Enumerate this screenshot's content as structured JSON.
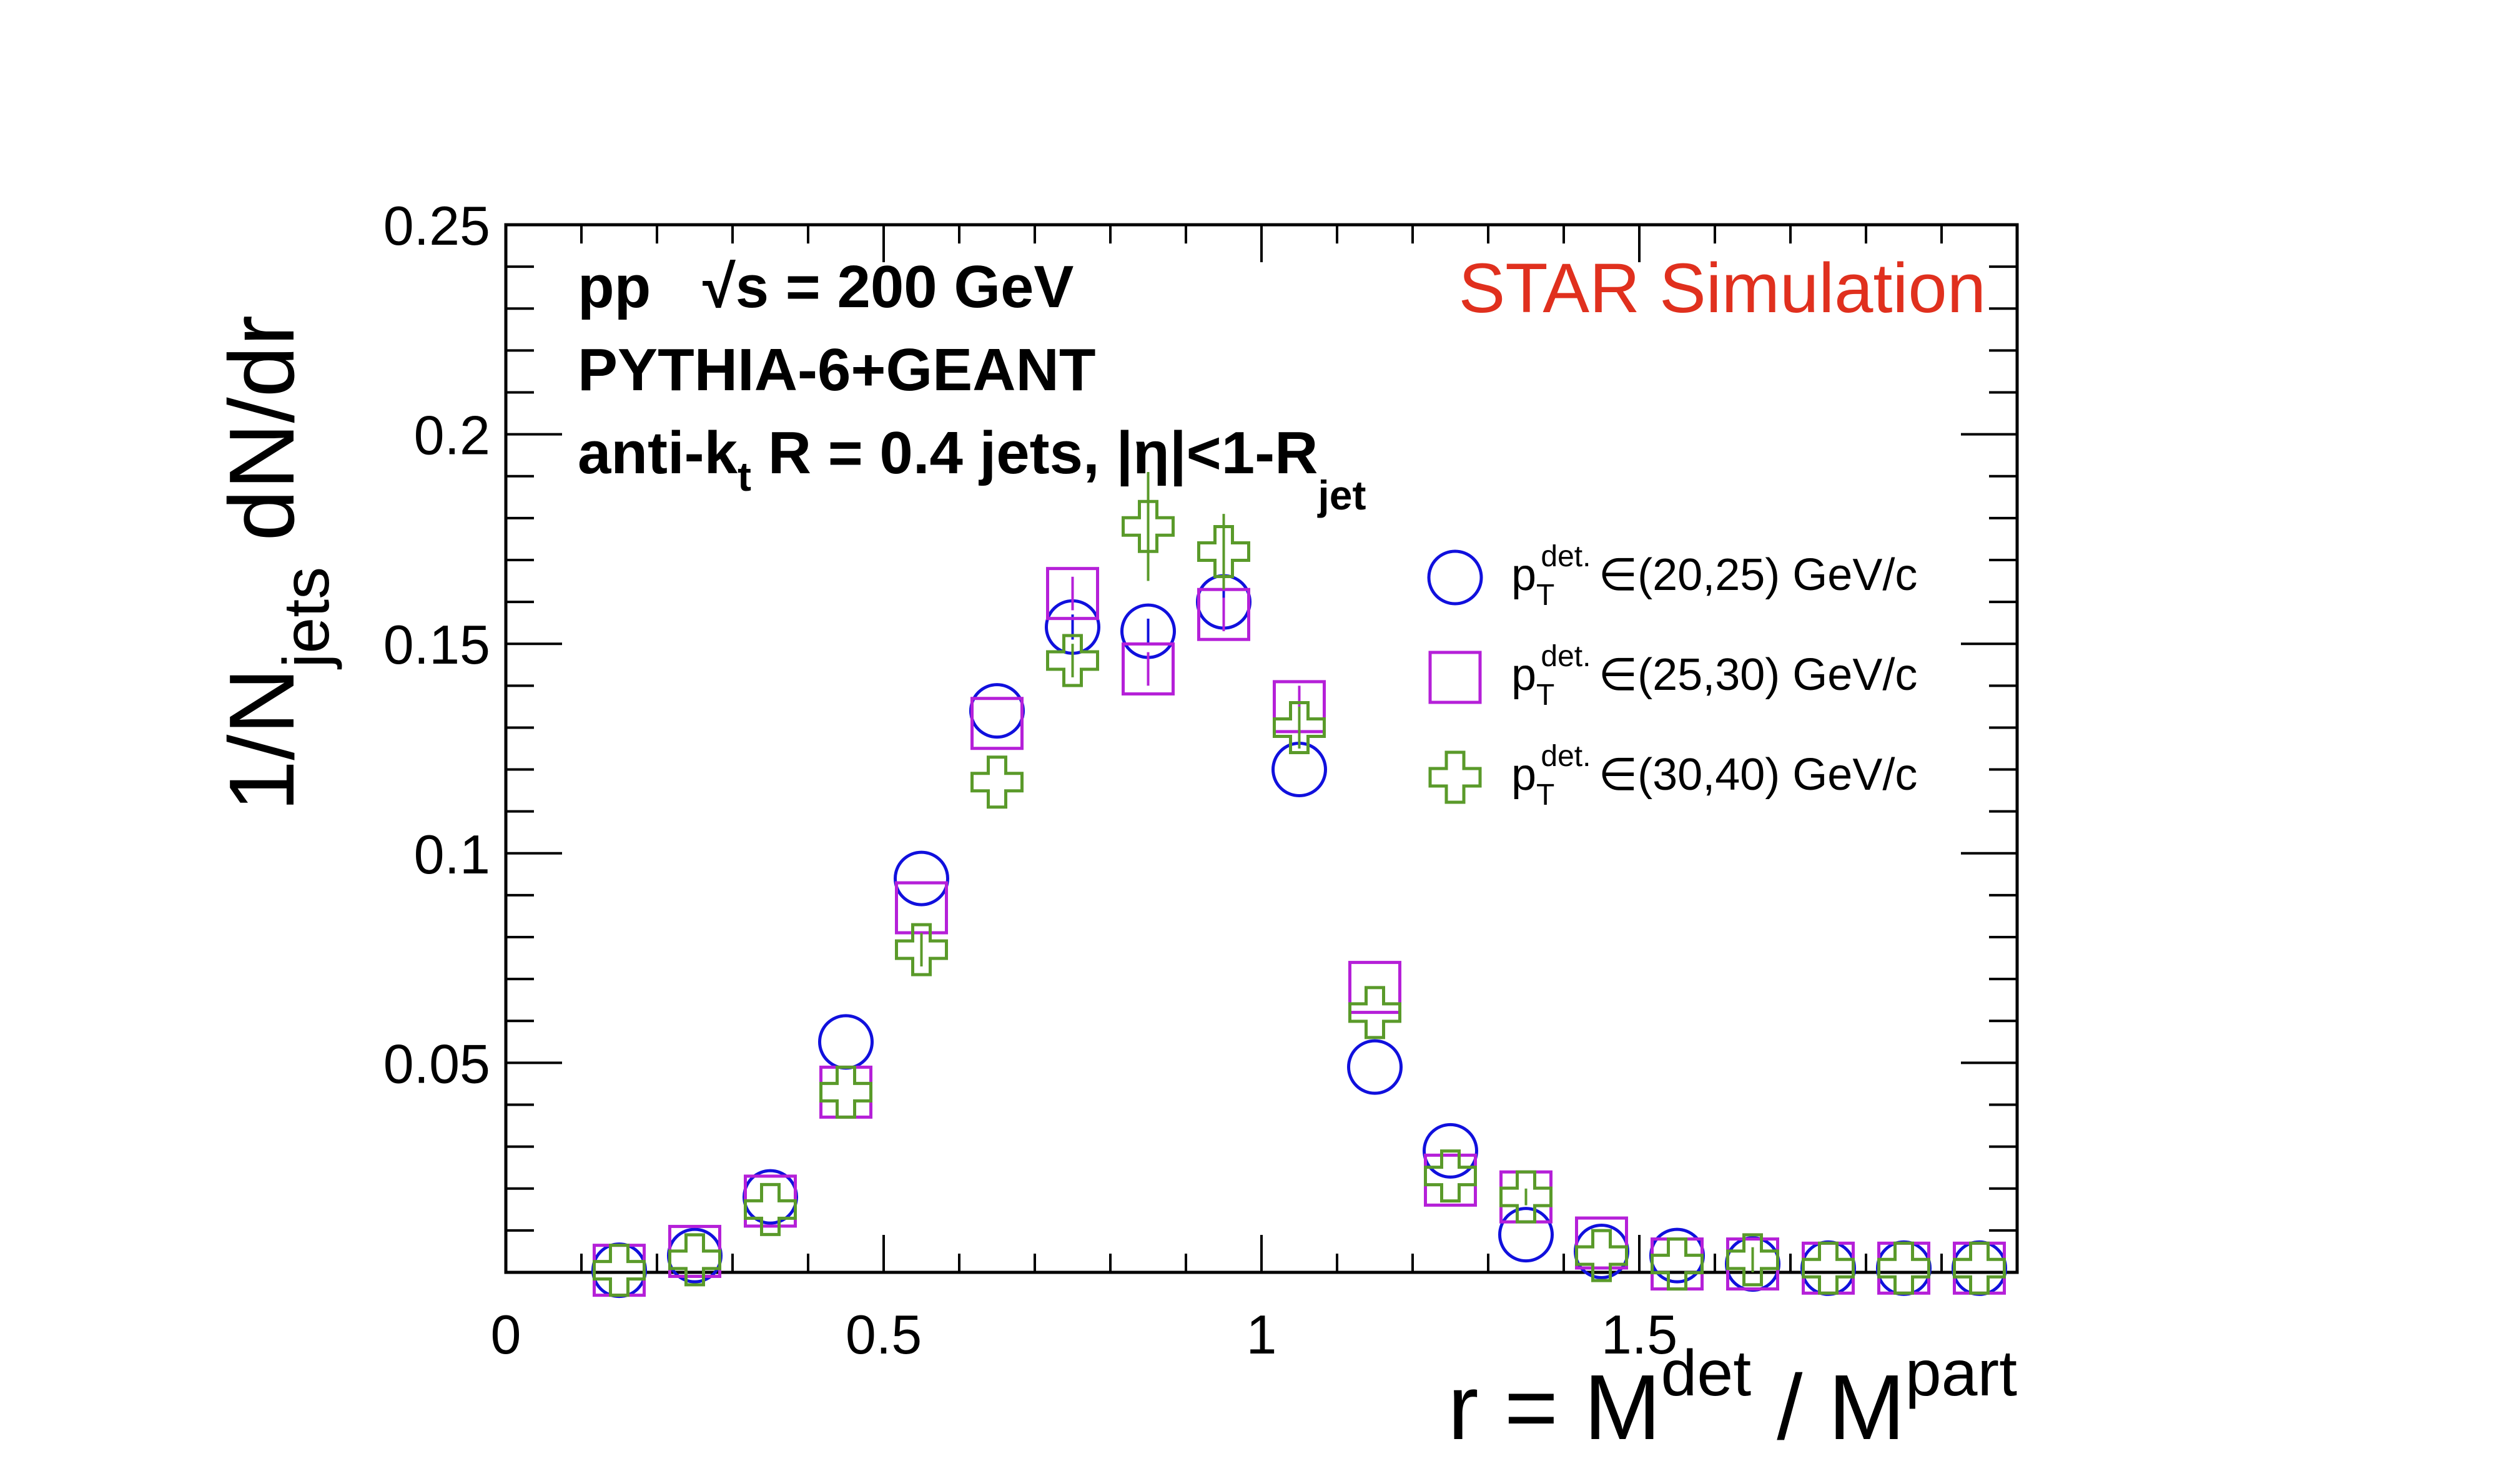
{
  "chart_data": {
    "type": "scatter",
    "xlabel": "r = M",
    "xlabel_sup1": "det",
    "xlabel_mid": " / M",
    "xlabel_sup2": "part",
    "ylabel": "1/N",
    "ylabel_sub": "jets",
    "ylabel_tail": " dN/dr",
    "xlim": [
      0,
      2.0
    ],
    "ylim": [
      0,
      0.25
    ],
    "x_ticks": [
      {
        "value": 0,
        "label": "0"
      },
      {
        "value": 0.5,
        "label": "0.5"
      },
      {
        "value": 1,
        "label": "1"
      },
      {
        "value": 1.5,
        "label": "1.5"
      }
    ],
    "y_ticks": [
      {
        "value": 0.05,
        "label": "0.05"
      },
      {
        "value": 0.1,
        "label": "0.1"
      },
      {
        "value": 0.15,
        "label": "0.15"
      },
      {
        "value": 0.2,
        "label": "0.2"
      },
      {
        "value": 0.25,
        "label": "0.25"
      }
    ],
    "grid": false,
    "legend_position": "right",
    "series": [
      {
        "label_main": "p",
        "label_sub": "T",
        "label_sup": "det.",
        "label_range": "∈(20,25) GeV/c",
        "marker": "circle",
        "color": "#1010dd",
        "x": [
          0.15,
          0.25,
          0.35,
          0.45,
          0.55,
          0.65,
          0.75,
          0.85,
          0.95,
          1.05,
          1.15,
          1.25,
          1.35,
          1.45,
          1.55,
          1.65,
          1.75,
          1.85,
          1.95
        ],
        "y": [
          0.0005,
          0.004,
          0.018,
          0.055,
          0.094,
          0.134,
          0.154,
          0.153,
          0.16,
          0.12,
          0.049,
          0.029,
          0.009,
          0.005,
          0.004,
          0.002,
          0.001,
          0.001,
          0.001
        ],
        "yerr": [
          0,
          0,
          0,
          0,
          0,
          0,
          0.003,
          0.003,
          0.003,
          0,
          0,
          0,
          0,
          0,
          0,
          0,
          0,
          0,
          0
        ]
      },
      {
        "label_main": "p",
        "label_sub": "T",
        "label_sup": "det.",
        "label_range": "∈(25,30) GeV/c",
        "marker": "square",
        "color": "#b520d8",
        "x": [
          0.15,
          0.25,
          0.35,
          0.45,
          0.55,
          0.65,
          0.75,
          0.85,
          0.95,
          1.05,
          1.15,
          1.25,
          1.35,
          1.45,
          1.55,
          1.65,
          1.75,
          1.85,
          1.95
        ],
        "y": [
          0.0005,
          0.005,
          0.017,
          0.043,
          0.087,
          0.131,
          0.162,
          0.144,
          0.157,
          0.135,
          0.068,
          0.022,
          0.018,
          0.007,
          0.002,
          0.002,
          0.001,
          0.001,
          0.001
        ],
        "yerr": [
          0,
          0,
          0,
          0,
          0,
          0,
          0.004,
          0.004,
          0.004,
          0.005,
          0,
          0,
          0,
          0,
          0,
          0,
          0,
          0,
          0
        ]
      },
      {
        "label_main": "p",
        "label_sub": "T",
        "label_sup": "det.",
        "label_range": "∈(30,40) GeV/c",
        "marker": "cross",
        "color": "#5a9a2a",
        "x": [
          0.15,
          0.25,
          0.35,
          0.45,
          0.55,
          0.65,
          0.75,
          0.85,
          0.95,
          1.05,
          1.15,
          1.25,
          1.35,
          1.45,
          1.55,
          1.65,
          1.75,
          1.85,
          1.95
        ],
        "y": [
          0.0005,
          0.003,
          0.015,
          0.043,
          0.077,
          0.117,
          0.146,
          0.178,
          0.172,
          0.13,
          0.062,
          0.023,
          0.018,
          0.004,
          0.002,
          0.003,
          0.001,
          0.001,
          0.001
        ],
        "yerr": [
          0,
          0,
          0,
          0,
          0.004,
          0,
          0.004,
          0.013,
          0.009,
          0.005,
          0,
          0,
          0.002,
          0,
          0,
          0.003,
          0,
          0,
          0
        ]
      }
    ]
  },
  "annotations": {
    "collision": "pp",
    "energy": "√s = 200 GeV",
    "generator": "PYTHIA-6+GEANT",
    "jets_prefix": "anti-k",
    "jets_sub": "t",
    "jets_mid": " R = 0.4 jets, |",
    "jets_eta": "η",
    "jets_tail": "|<1-R",
    "jets_tail_sub": "jet",
    "star_label": "STAR Simulation"
  }
}
